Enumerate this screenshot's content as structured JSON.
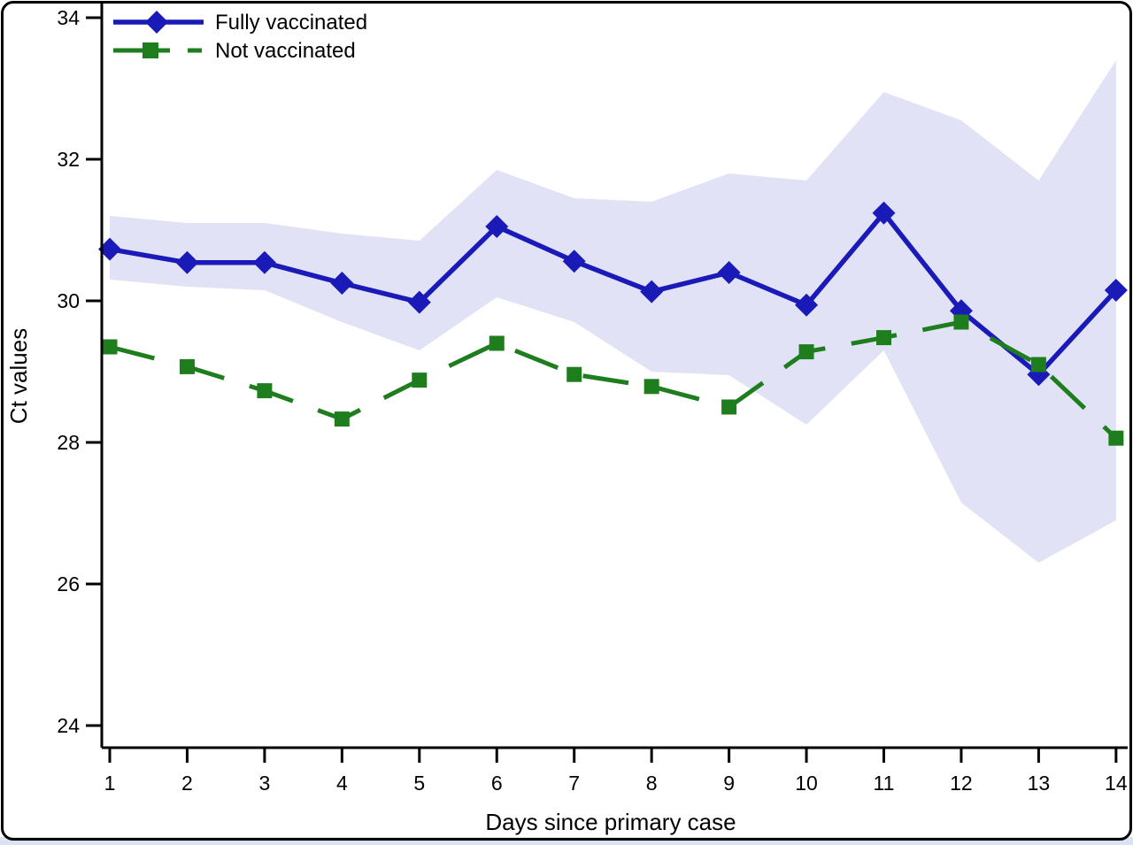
{
  "figure": {
    "colors": {
      "fully_vaccinated_blue": "#1a1ab8",
      "not_vaccinated_green": "#1e7e1e",
      "confidence_band": "#e2e2f7",
      "footer_strip": "#d9e3f2",
      "axis_black": "#000000"
    }
  },
  "chart_data": {
    "type": "line",
    "title": "",
    "xlabel": "Days since primary case",
    "ylabel": "Ct values",
    "x": [
      1,
      2,
      3,
      4,
      5,
      6,
      7,
      8,
      9,
      10,
      11,
      12,
      13,
      14
    ],
    "xlim": [
      1,
      14
    ],
    "ylim": [
      24,
      34
    ],
    "yticks": [
      34,
      32,
      30,
      28,
      26,
      24
    ],
    "grid": false,
    "legend_position": "top-left",
    "band_color": "#e2e2f7",
    "series": [
      {
        "name": "Fully vaccinated",
        "color": "#1a1ab8",
        "marker": "diamond",
        "line_style": "solid",
        "values": [
          30.73,
          30.54,
          30.54,
          30.25,
          29.98,
          31.05,
          30.56,
          30.13,
          30.4,
          29.94,
          31.24,
          29.86,
          28.96,
          30.15
        ],
        "ci_upper": [
          31.2,
          31.1,
          31.1,
          30.95,
          30.85,
          31.85,
          31.45,
          31.4,
          31.8,
          31.7,
          32.95,
          32.55,
          31.7,
          33.4
        ],
        "ci_lower": [
          30.3,
          30.2,
          30.15,
          29.7,
          29.3,
          30.05,
          29.7,
          29.0,
          28.95,
          28.25,
          29.3,
          27.15,
          26.3,
          26.9
        ]
      },
      {
        "name": "Not vaccinated",
        "color": "#1e7e1e",
        "marker": "square",
        "line_style": "dashed",
        "values": [
          29.35,
          29.07,
          28.73,
          28.33,
          28.88,
          29.4,
          28.96,
          28.79,
          28.5,
          29.28,
          29.48,
          29.7,
          29.1,
          28.06
        ]
      }
    ]
  }
}
